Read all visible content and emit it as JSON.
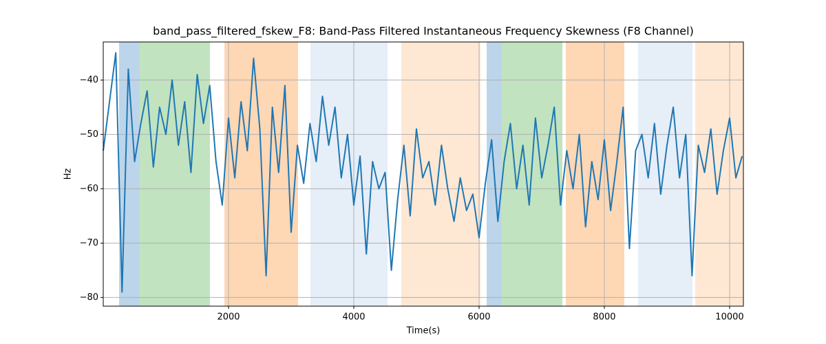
{
  "chart_data": {
    "type": "line",
    "title": "band_pass_filtered_fskew_F8: Band-Pass Filtered Instantaneous Frequency Skewness (F8 Channel)",
    "x_label": "Time(s)",
    "y_label": "Hz",
    "x": [
      0,
      100,
      200,
      300,
      400,
      500,
      600,
      700,
      800,
      900,
      1000,
      1100,
      1200,
      1300,
      1400,
      1500,
      1600,
      1700,
      1800,
      1900,
      2000,
      2100,
      2200,
      2300,
      2400,
      2500,
      2600,
      2700,
      2800,
      2900,
      3000,
      3100,
      3200,
      3300,
      3400,
      3500,
      3600,
      3700,
      3800,
      3900,
      4000,
      4100,
      4200,
      4300,
      4400,
      4500,
      4600,
      4700,
      4800,
      4900,
      5000,
      5100,
      5200,
      5300,
      5400,
      5500,
      5600,
      5700,
      5800,
      5900,
      6000,
      6100,
      6200,
      6300,
      6400,
      6500,
      6600,
      6700,
      6800,
      6900,
      7000,
      7100,
      7200,
      7300,
      7400,
      7500,
      7600,
      7700,
      7800,
      7900,
      8000,
      8100,
      8200,
      8300,
      8400,
      8500,
      8600,
      8700,
      8800,
      8900,
      9000,
      9100,
      9200,
      9300,
      9400,
      9500,
      9600,
      9700,
      9800,
      9900,
      10000,
      10100,
      10200
    ],
    "series": [
      {
        "color": "#1f77b4",
        "values": [
          -53,
          -44,
          -35,
          -79,
          -38,
          -55,
          -48,
          -42,
          -56,
          -45,
          -50,
          -40,
          -52,
          -44,
          -57,
          -39,
          -48,
          -41,
          -55,
          -63,
          -47,
          -58,
          -44,
          -53,
          -36,
          -49,
          -76,
          -45,
          -57,
          -41,
          -68,
          -52,
          -59,
          -48,
          -55,
          -43,
          -52,
          -45,
          -58,
          -50,
          -63,
          -54,
          -72,
          -55,
          -60,
          -57,
          -75,
          -62,
          -52,
          -65,
          -49,
          -58,
          -55,
          -63,
          -52,
          -60,
          -66,
          -58,
          -64,
          -61,
          -69,
          -59,
          -51,
          -66,
          -55,
          -48,
          -60,
          -52,
          -63,
          -47,
          -58,
          -52,
          -45,
          -63,
          -53,
          -60,
          -50,
          -67,
          -55,
          -62,
          -51,
          -64,
          -55,
          -45,
          -71,
          -53,
          -50,
          -58,
          -48,
          -61,
          -52,
          -45,
          -58,
          -50,
          -76,
          -52,
          -57,
          -49,
          -61,
          -53,
          -47,
          -58,
          -54
        ]
      }
    ],
    "spans": [
      {
        "start": 253,
        "end": 582,
        "color": "#bcd5ea"
      },
      {
        "start": 582,
        "end": 1703,
        "color": "#c1e3c0"
      },
      {
        "start": 1934,
        "end": 3110,
        "color": "#fed7b5"
      },
      {
        "start": 3308,
        "end": 4538,
        "color": "#e6eef8"
      },
      {
        "start": 4758,
        "end": 6022,
        "color": "#fee8d4"
      },
      {
        "start": 6121,
        "end": 6363,
        "color": "#bcd5ea"
      },
      {
        "start": 6363,
        "end": 7330,
        "color": "#c1e3c0"
      },
      {
        "start": 7385,
        "end": 8319,
        "color": "#fed7b5"
      },
      {
        "start": 8538,
        "end": 9407,
        "color": "#e6eef8"
      },
      {
        "start": 9451,
        "end": 10220,
        "color": "#fee8d4"
      }
    ],
    "xlim": [
      0,
      10220
    ],
    "ylim": [
      -81.6,
      -33.0
    ],
    "xticks": [
      2000,
      4000,
      6000,
      8000,
      10000
    ],
    "yticks": [
      {
        "value": -80,
        "label": "−80"
      },
      {
        "value": -70,
        "label": "−70"
      },
      {
        "value": -60,
        "label": "−60"
      },
      {
        "value": -50,
        "label": "−50"
      },
      {
        "value": -40,
        "label": "−40"
      }
    ],
    "grid": true
  }
}
